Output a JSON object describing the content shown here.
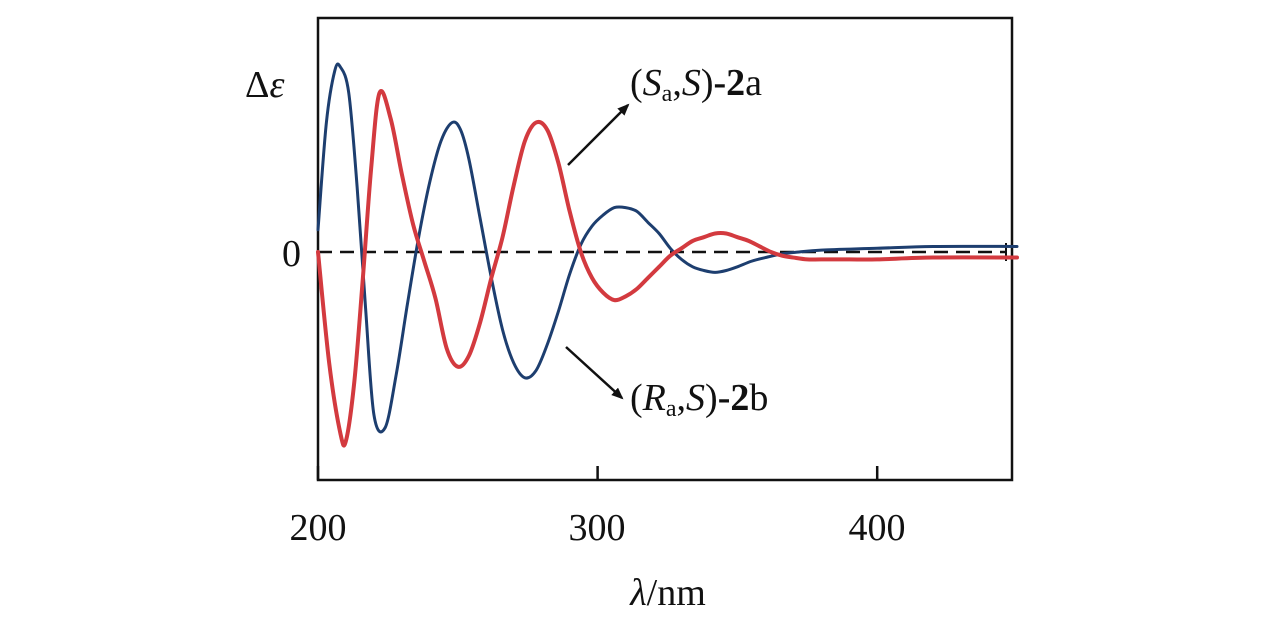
{
  "chart_data": {
    "type": "line",
    "ylabel": "Δε",
    "ylabel_parts": {
      "symbol": "Δ",
      "var": "ε"
    },
    "xlabel": "λ/nm",
    "xlabel_parts": {
      "var": "λ",
      "unit": "/nm"
    },
    "xlim": [
      200,
      450
    ],
    "ylim": [
      -1.0,
      1.0
    ],
    "x_ticks": [
      200,
      300,
      400
    ],
    "x_tick_labels": [
      "200",
      "300",
      "400"
    ],
    "y_tick_labels": [
      "0"
    ],
    "zero_line": "dashed",
    "grid": false,
    "series": [
      {
        "name": "(Sa,S)-2a",
        "label_parts": {
          "open": "(",
          "config": "S",
          "sub": "a",
          "sep": ",",
          "config2": "S",
          "close": ")",
          "dash": "-",
          "num": "2",
          "letter": "a"
        },
        "color": "#d33a3f",
        "x": [
          200,
          204,
          208,
          210,
          213,
          216,
          219,
          222,
          226,
          230,
          234,
          238,
          242,
          246,
          250,
          254,
          258,
          262,
          266,
          270,
          274,
          278,
          282,
          286,
          290,
          294,
          298,
          302,
          306,
          310,
          314,
          318,
          322,
          326,
          330,
          334,
          338,
          342,
          346,
          350,
          354,
          358,
          362,
          366,
          370,
          375,
          380,
          390,
          400,
          420,
          450
        ],
        "y": [
          0.0,
          -0.6,
          -0.98,
          -1.02,
          -0.7,
          -0.15,
          0.45,
          0.86,
          0.72,
          0.42,
          0.15,
          -0.05,
          -0.25,
          -0.52,
          -0.62,
          -0.56,
          -0.38,
          -0.14,
          0.08,
          0.36,
          0.6,
          0.7,
          0.66,
          0.48,
          0.22,
          0.0,
          -0.14,
          -0.22,
          -0.26,
          -0.24,
          -0.2,
          -0.14,
          -0.08,
          -0.02,
          0.02,
          0.06,
          0.08,
          0.1,
          0.1,
          0.08,
          0.06,
          0.03,
          0.0,
          -0.02,
          -0.03,
          -0.04,
          -0.04,
          -0.04,
          -0.04,
          -0.03,
          -0.03
        ]
      },
      {
        "name": "(Ra,S)-2b",
        "label_parts": {
          "open": "(",
          "config": "R",
          "sub": "a",
          "sep": ",",
          "config2": "S",
          "close": ")",
          "dash": "-",
          "num": "2",
          "letter": "b"
        },
        "color": "#1d3e6f",
        "x": [
          200,
          203,
          206,
          208,
          211,
          214,
          217,
          220,
          224,
          228,
          232,
          236,
          240,
          244,
          248,
          251,
          254,
          258,
          262,
          266,
          270,
          274,
          278,
          282,
          286,
          290,
          294,
          298,
          302,
          306,
          310,
          314,
          318,
          322,
          326,
          330,
          334,
          338,
          342,
          346,
          350,
          355,
          360,
          366,
          372,
          380,
          400,
          420,
          450
        ],
        "y": [
          0.12,
          0.7,
          0.98,
          1.0,
          0.86,
          0.35,
          -0.3,
          -0.88,
          -0.95,
          -0.66,
          -0.28,
          0.08,
          0.38,
          0.6,
          0.7,
          0.66,
          0.5,
          0.18,
          -0.14,
          -0.42,
          -0.6,
          -0.68,
          -0.64,
          -0.5,
          -0.32,
          -0.12,
          0.04,
          0.14,
          0.2,
          0.24,
          0.24,
          0.22,
          0.16,
          0.1,
          0.02,
          -0.04,
          -0.08,
          -0.1,
          -0.11,
          -0.1,
          -0.08,
          -0.05,
          -0.03,
          -0.01,
          0.0,
          0.01,
          0.02,
          0.03,
          0.03
        ]
      }
    ]
  }
}
